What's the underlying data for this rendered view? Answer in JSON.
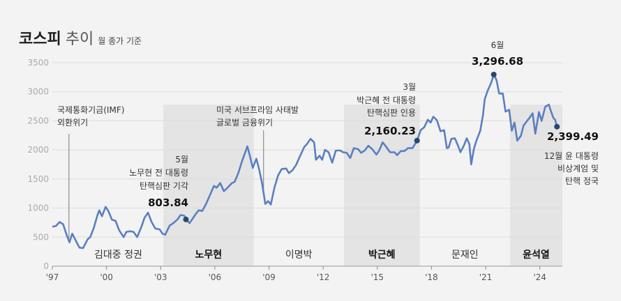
{
  "chart_data": {
    "type": "line",
    "title": "코스피",
    "subtitle": "추이",
    "basis_note": "월 종가 기준",
    "line_color": "#5a7fc0",
    "marker_color": "#25486e",
    "shade_color": "#e4e4e4",
    "ylim": [
      0,
      3500
    ],
    "yticks": [
      0,
      500,
      1000,
      1500,
      2000,
      2500,
      3000,
      3500
    ],
    "xlim": [
      1997,
      2025.25
    ],
    "xtick_labels": [
      {
        "x": 1997,
        "label": "'97"
      },
      {
        "x": 2000,
        "label": "'00"
      },
      {
        "x": 2003,
        "label": "'03"
      },
      {
        "x": 2006,
        "label": "'06"
      },
      {
        "x": 2009,
        "label": "'09"
      },
      {
        "x": 2012,
        "label": "'12"
      },
      {
        "x": 2015,
        "label": "'15"
      },
      {
        "x": 2018,
        "label": "'18"
      },
      {
        "x": 2021,
        "label": "'21"
      },
      {
        "x": 2024,
        "label": "'24"
      }
    ],
    "eras": [
      {
        "label": "김대중 정권",
        "start": 1998.15,
        "end": 2003.15,
        "shaded": false,
        "bold": false
      },
      {
        "label": "노무현",
        "start": 2003.15,
        "end": 2008.15,
        "shaded": true,
        "bold": true
      },
      {
        "label": "이명박",
        "start": 2008.15,
        "end": 2013.15,
        "shaded": false,
        "bold": false
      },
      {
        "label": "박근혜",
        "start": 2013.15,
        "end": 2017.35,
        "shaded": true,
        "bold": true
      },
      {
        "label": "문재인",
        "start": 2017.35,
        "end": 2022.35,
        "shaded": false,
        "bold": false
      },
      {
        "label": "윤석열",
        "start": 2022.35,
        "end": 2025.25,
        "shaded": true,
        "bold": true
      }
    ],
    "series": [
      {
        "values": [
          [
            1997.0,
            680
          ],
          [
            1997.2,
            690
          ],
          [
            1997.4,
            760
          ],
          [
            1997.6,
            720
          ],
          [
            1997.8,
            530
          ],
          [
            1997.95,
            410
          ],
          [
            1998.1,
            560
          ],
          [
            1998.3,
            440
          ],
          [
            1998.5,
            320
          ],
          [
            1998.7,
            310
          ],
          [
            1998.95,
            460
          ],
          [
            1999.1,
            500
          ],
          [
            1999.3,
            660
          ],
          [
            1999.5,
            880
          ],
          [
            1999.6,
            960
          ],
          [
            1999.75,
            860
          ],
          [
            1999.95,
            1020
          ],
          [
            2000.1,
            950
          ],
          [
            2000.3,
            800
          ],
          [
            2000.5,
            780
          ],
          [
            2000.7,
            620
          ],
          [
            2000.95,
            500
          ],
          [
            2001.1,
            590
          ],
          [
            2001.3,
            600
          ],
          [
            2001.5,
            590
          ],
          [
            2001.7,
            500
          ],
          [
            2001.95,
            690
          ],
          [
            2002.1,
            830
          ],
          [
            2002.3,
            920
          ],
          [
            2002.5,
            760
          ],
          [
            2002.7,
            650
          ],
          [
            2002.95,
            630
          ],
          [
            2003.1,
            560
          ],
          [
            2003.25,
            540
          ],
          [
            2003.5,
            700
          ],
          [
            2003.7,
            740
          ],
          [
            2003.95,
            810
          ],
          [
            2004.1,
            880
          ],
          [
            2004.3,
            870
          ],
          [
            2004.45,
            790
          ],
          [
            2004.6,
            740
          ],
          [
            2004.95,
            900
          ],
          [
            2005.1,
            960
          ],
          [
            2005.3,
            950
          ],
          [
            2005.5,
            1060
          ],
          [
            2005.7,
            1200
          ],
          [
            2005.95,
            1380
          ],
          [
            2006.1,
            1350
          ],
          [
            2006.3,
            1430
          ],
          [
            2006.5,
            1290
          ],
          [
            2006.7,
            1350
          ],
          [
            2006.95,
            1430
          ],
          [
            2007.1,
            1450
          ],
          [
            2007.3,
            1600
          ],
          [
            2007.5,
            1800
          ],
          [
            2007.65,
            1930
          ],
          [
            2007.8,
            2060
          ],
          [
            2007.95,
            1890
          ],
          [
            2008.1,
            1690
          ],
          [
            2008.3,
            1850
          ],
          [
            2008.45,
            1670
          ],
          [
            2008.6,
            1450
          ],
          [
            2008.8,
            1070
          ],
          [
            2008.95,
            1120
          ],
          [
            2009.1,
            1060
          ],
          [
            2009.3,
            1350
          ],
          [
            2009.5,
            1560
          ],
          [
            2009.7,
            1670
          ],
          [
            2009.95,
            1680
          ],
          [
            2010.1,
            1600
          ],
          [
            2010.3,
            1650
          ],
          [
            2010.5,
            1740
          ],
          [
            2010.7,
            1880
          ],
          [
            2010.95,
            2050
          ],
          [
            2011.1,
            2100
          ],
          [
            2011.3,
            2190
          ],
          [
            2011.5,
            2130
          ],
          [
            2011.6,
            1830
          ],
          [
            2011.8,
            1900
          ],
          [
            2011.95,
            1830
          ],
          [
            2012.1,
            2000
          ],
          [
            2012.3,
            1960
          ],
          [
            2012.5,
            1780
          ],
          [
            2012.7,
            1990
          ],
          [
            2012.95,
            1990
          ],
          [
            2013.1,
            1960
          ],
          [
            2013.3,
            1950
          ],
          [
            2013.5,
            1860
          ],
          [
            2013.7,
            2030
          ],
          [
            2013.95,
            2010
          ],
          [
            2014.1,
            1950
          ],
          [
            2014.3,
            1990
          ],
          [
            2014.5,
            2070
          ],
          [
            2014.7,
            2020
          ],
          [
            2014.95,
            1920
          ],
          [
            2015.1,
            1990
          ],
          [
            2015.3,
            2130
          ],
          [
            2015.5,
            2050
          ],
          [
            2015.7,
            1960
          ],
          [
            2015.95,
            1960
          ],
          [
            2016.1,
            1910
          ],
          [
            2016.3,
            1980
          ],
          [
            2016.5,
            1980
          ],
          [
            2016.7,
            2030
          ],
          [
            2016.95,
            2030
          ],
          [
            2017.2,
            2160.23
          ],
          [
            2017.4,
            2340
          ],
          [
            2017.6,
            2390
          ],
          [
            2017.8,
            2520
          ],
          [
            2017.95,
            2470
          ],
          [
            2018.1,
            2570
          ],
          [
            2018.3,
            2510
          ],
          [
            2018.5,
            2320
          ],
          [
            2018.7,
            2340
          ],
          [
            2018.85,
            2030
          ],
          [
            2018.95,
            2040
          ],
          [
            2019.1,
            2190
          ],
          [
            2019.3,
            2200
          ],
          [
            2019.5,
            2050
          ],
          [
            2019.6,
            1960
          ],
          [
            2019.8,
            2080
          ],
          [
            2019.95,
            2200
          ],
          [
            2020.1,
            2100
          ],
          [
            2020.2,
            1750
          ],
          [
            2020.35,
            2020
          ],
          [
            2020.5,
            2170
          ],
          [
            2020.7,
            2330
          ],
          [
            2020.85,
            2590
          ],
          [
            2020.95,
            2870
          ],
          [
            2021.1,
            3010
          ],
          [
            2021.3,
            3150
          ],
          [
            2021.45,
            3296.68
          ],
          [
            2021.6,
            3200
          ],
          [
            2021.75,
            2970
          ],
          [
            2021.95,
            2970
          ],
          [
            2022.1,
            2660
          ],
          [
            2022.3,
            2690
          ],
          [
            2022.45,
            2330
          ],
          [
            2022.6,
            2470
          ],
          [
            2022.75,
            2160
          ],
          [
            2022.95,
            2240
          ],
          [
            2023.1,
            2420
          ],
          [
            2023.3,
            2500
          ],
          [
            2023.45,
            2560
          ],
          [
            2023.6,
            2630
          ],
          [
            2023.75,
            2280
          ],
          [
            2023.95,
            2650
          ],
          [
            2024.1,
            2500
          ],
          [
            2024.3,
            2740
          ],
          [
            2024.5,
            2780
          ],
          [
            2024.6,
            2680
          ],
          [
            2024.75,
            2550
          ],
          [
            2024.85,
            2520
          ],
          [
            2024.95,
            2399.49
          ]
        ]
      }
    ],
    "highlights": [
      {
        "x": 2004.4,
        "y": 803.84,
        "month": "5월",
        "value": "803.84",
        "lines": [
          "노무현 전 대통령",
          "탄핵심판 기각"
        ]
      },
      {
        "x": 2017.2,
        "y": 2160.23,
        "month": "3월",
        "value": "2,160.23",
        "lines": [
          "박근혜 전 대통령",
          "탄핵심판 인용"
        ]
      },
      {
        "x": 2021.45,
        "y": 3296.68,
        "month": "6월",
        "value": "3,296.68",
        "lines": []
      },
      {
        "x": 2024.95,
        "y": 2399.49,
        "month": "",
        "value": "2,399.49",
        "lines": [
          "12월 윤 대통령",
          "비상계엄 및",
          "탄핵 정국"
        ]
      }
    ],
    "events": [
      {
        "x": 1997.92,
        "lines": [
          "국제통화기금(IMF)",
          "외환위기"
        ]
      },
      {
        "x": 2008.7,
        "lines": [
          "미국 서브프라임 사태발",
          "글로벌 금융위기"
        ]
      }
    ]
  }
}
